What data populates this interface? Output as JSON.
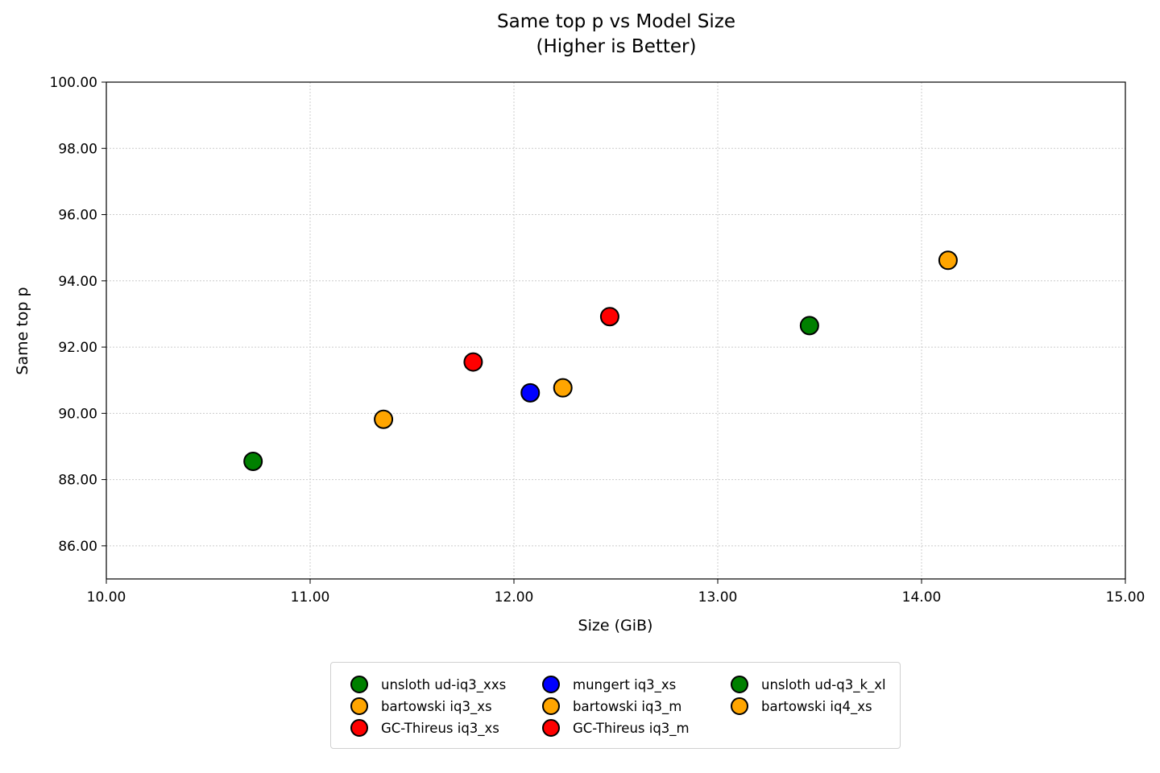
{
  "chart_data": {
    "type": "scatter",
    "title": "Same top p vs Model Size",
    "subtitle": "(Higher is Better)",
    "xlabel": "Size (GiB)",
    "ylabel": "Same top p",
    "xlim": [
      10,
      15
    ],
    "ylim": [
      85,
      100
    ],
    "xticks": [
      "10.00",
      "11.00",
      "12.00",
      "13.00",
      "14.00",
      "15.00"
    ],
    "yticks": [
      "86.00",
      "88.00",
      "90.00",
      "92.00",
      "94.00",
      "96.00",
      "98.00",
      "100.00"
    ],
    "grid": true,
    "legend_position": "bottom-center",
    "series": [
      {
        "name": "unsloth ud-iq3_xxs",
        "color": "#008000",
        "x": 10.72,
        "y": 88.55
      },
      {
        "name": "bartowski iq3_xs",
        "color": "#FFA500",
        "x": 11.36,
        "y": 89.82
      },
      {
        "name": "GC-Thireus iq3_xs",
        "color": "#FF0000",
        "x": 11.8,
        "y": 91.55
      },
      {
        "name": "mungert iq3_xs",
        "color": "#0000FF",
        "x": 12.08,
        "y": 90.62
      },
      {
        "name": "bartowski iq3_m",
        "color": "#FFA500",
        "x": 12.24,
        "y": 90.77
      },
      {
        "name": "GC-Thireus iq3_m",
        "color": "#FF0000",
        "x": 12.47,
        "y": 92.92
      },
      {
        "name": "unsloth ud-q3_k_xl",
        "color": "#008000",
        "x": 13.45,
        "y": 92.65
      },
      {
        "name": "bartowski iq4_xs",
        "color": "#FFA500",
        "x": 14.13,
        "y": 94.62
      }
    ]
  }
}
